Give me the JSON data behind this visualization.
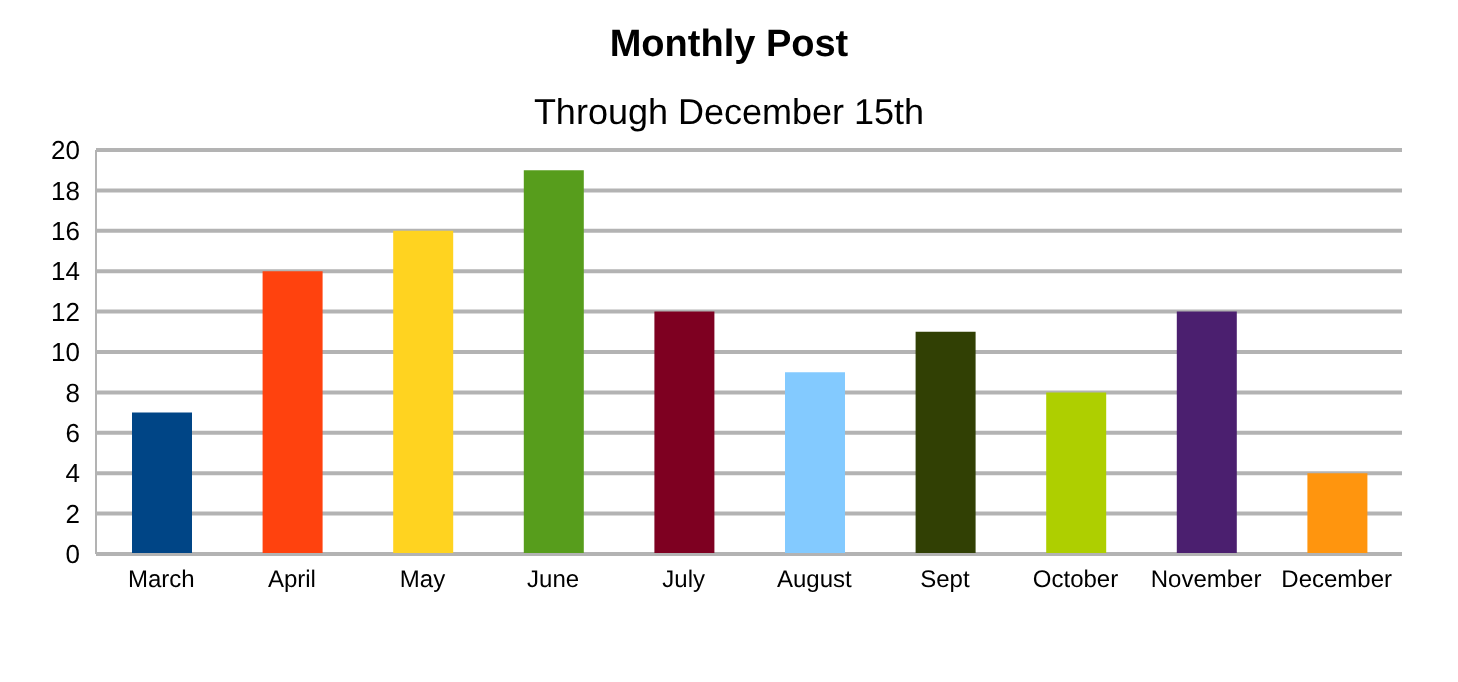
{
  "chart_data": {
    "type": "bar",
    "title": "Monthly Post",
    "subtitle": "Through December 15th",
    "categories": [
      "March",
      "April",
      "May",
      "June",
      "July",
      "August",
      "Sept",
      "October",
      "November",
      "December"
    ],
    "values": [
      7,
      14,
      16,
      19,
      12,
      9,
      11,
      8,
      12,
      4
    ],
    "colors": [
      "#004586",
      "#ff420e",
      "#ffd320",
      "#579d1c",
      "#7e0021",
      "#83caff",
      "#314004",
      "#aecf00",
      "#4b1f6f",
      "#ff950e"
    ],
    "ylim": [
      0,
      20
    ],
    "yticks": [
      0,
      2,
      4,
      6,
      8,
      10,
      12,
      14,
      16,
      18,
      20
    ],
    "grid": "y"
  }
}
